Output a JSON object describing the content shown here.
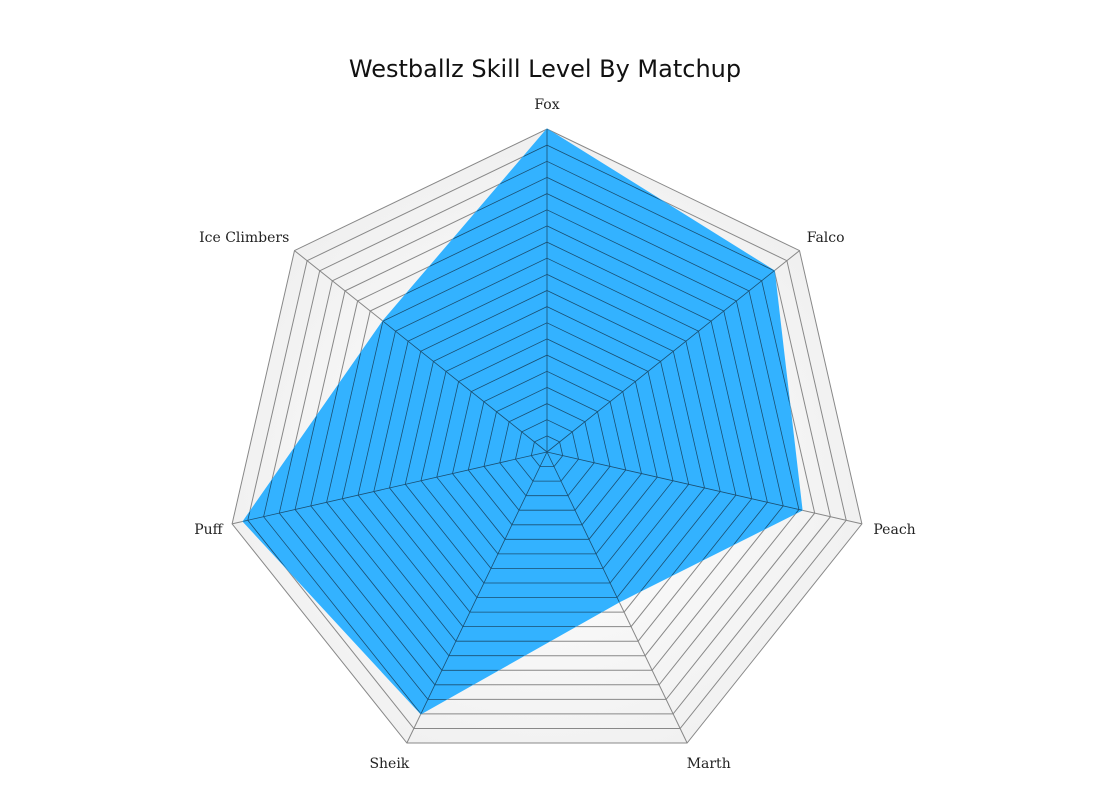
{
  "chart_data": {
    "type": "radar",
    "title": "Westballz Skill Level By Matchup",
    "categories": [
      "Fox",
      "Falco",
      "Peach",
      "Marth",
      "Sheik",
      "Puff",
      "Ice Climbers"
    ],
    "series": [
      {
        "name": "Skill Level",
        "values": [
          20,
          18,
          16.2,
          10.3,
          18,
          19.3,
          13
        ]
      }
    ],
    "rlim": [
      0,
      20
    ],
    "grid_levels": 20,
    "colors": {
      "fill": "#33b2ff",
      "grid_on_fill": "#1a4f72",
      "grid": "#888888",
      "band": "#f0f0f0"
    }
  }
}
